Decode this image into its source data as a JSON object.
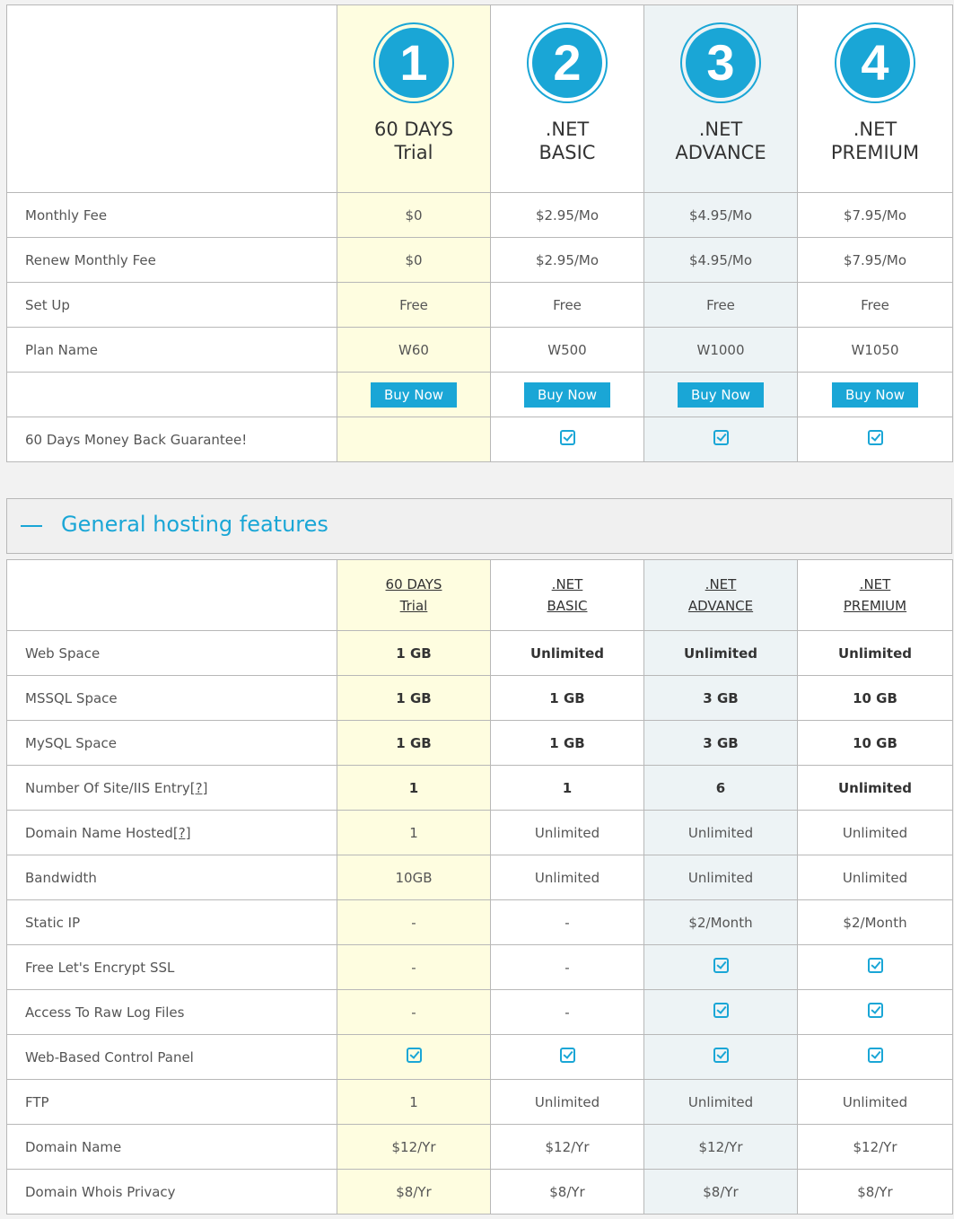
{
  "plans": [
    {
      "number": "1",
      "title_line1": "60 DAYS",
      "title_line2": "Trial",
      "monthly_fee": "$0",
      "renew_fee": "$0",
      "setup": "Free",
      "plan_name": "W60",
      "buy_label": "Buy Now",
      "guarantee": false
    },
    {
      "number": "2",
      "title_line1": ".NET",
      "title_line2": "BASIC",
      "monthly_fee": "$2.95/Mo",
      "renew_fee": "$2.95/Mo",
      "setup": "Free",
      "plan_name": "W500",
      "buy_label": "Buy Now",
      "guarantee": true
    },
    {
      "number": "3",
      "title_line1": ".NET",
      "title_line2": "ADVANCE",
      "monthly_fee": "$4.95/Mo",
      "renew_fee": "$4.95/Mo",
      "setup": "Free",
      "plan_name": "W1000",
      "buy_label": "Buy Now",
      "guarantee": true
    },
    {
      "number": "4",
      "title_line1": ".NET",
      "title_line2": "PREMIUM",
      "monthly_fee": "$7.95/Mo",
      "renew_fee": "$7.95/Mo",
      "setup": "Free",
      "plan_name": "W1050",
      "buy_label": "Buy Now",
      "guarantee": true
    }
  ],
  "row_labels": {
    "monthly_fee": "Monthly Fee",
    "renew_fee": "Renew Monthly Fee",
    "setup": "Set Up",
    "plan_name": "Plan Name",
    "guarantee": "60 Days Money Back Guarantee!"
  },
  "section": {
    "title": "General hosting features",
    "icon": "minus-icon"
  },
  "feature_headers": [
    {
      "line1": "60 DAYS",
      "line2": "Trial"
    },
    {
      "line1": ".NET",
      "line2": "BASIC"
    },
    {
      "line1": ".NET",
      "line2": "ADVANCE"
    },
    {
      "line1": ".NET",
      "line2": "PREMIUM"
    }
  ],
  "features": [
    {
      "label": "Web Space",
      "help": "",
      "bold": true,
      "values": [
        "1 GB",
        "Unlimited",
        "Unlimited",
        "Unlimited"
      ]
    },
    {
      "label": "MSSQL Space",
      "help": "",
      "bold": true,
      "values": [
        "1 GB",
        "1 GB",
        "3 GB",
        "10 GB"
      ]
    },
    {
      "label": "MySQL Space",
      "help": "",
      "bold": true,
      "values": [
        "1 GB",
        "1 GB",
        "3 GB",
        "10 GB"
      ]
    },
    {
      "label": "Number Of Site/IIS Entry",
      "help": "[?]",
      "bold": true,
      "values": [
        "1",
        "1",
        "6",
        "Unlimited"
      ]
    },
    {
      "label": "Domain Name Hosted",
      "help": "[?]",
      "bold": false,
      "values": [
        "1",
        "Unlimited",
        "Unlimited",
        "Unlimited"
      ]
    },
    {
      "label": "Bandwidth",
      "help": "",
      "bold": false,
      "values": [
        "10GB",
        "Unlimited",
        "Unlimited",
        "Unlimited"
      ]
    },
    {
      "label": "Static IP",
      "help": "",
      "bold": false,
      "values": [
        "-",
        "-",
        "$2/Month",
        "$2/Month"
      ]
    },
    {
      "label": "Free Let's Encrypt SSL",
      "help": "",
      "bold": false,
      "values": [
        "-",
        "-",
        "check",
        "check"
      ]
    },
    {
      "label": "Access To Raw Log Files",
      "help": "",
      "bold": false,
      "values": [
        "-",
        "-",
        "check",
        "check"
      ]
    },
    {
      "label": "Web-Based Control Panel",
      "help": "",
      "bold": false,
      "values": [
        "check",
        "check",
        "check",
        "check"
      ]
    },
    {
      "label": "FTP",
      "help": "",
      "bold": false,
      "values": [
        "1",
        "Unlimited",
        "Unlimited",
        "Unlimited"
      ]
    },
    {
      "label": "Domain Name",
      "help": "",
      "bold": false,
      "values": [
        "$12/Yr",
        "$12/Yr",
        "$12/Yr",
        "$12/Yr"
      ]
    },
    {
      "label": "Domain Whois Privacy",
      "help": "",
      "bold": false,
      "values": [
        "$8/Yr",
        "$8/Yr",
        "$8/Yr",
        "$8/Yr"
      ]
    }
  ],
  "colors": {
    "accent": "#1aa6d6",
    "trial_bg": "#fefde0",
    "advance_bg": "#edf3f5"
  }
}
